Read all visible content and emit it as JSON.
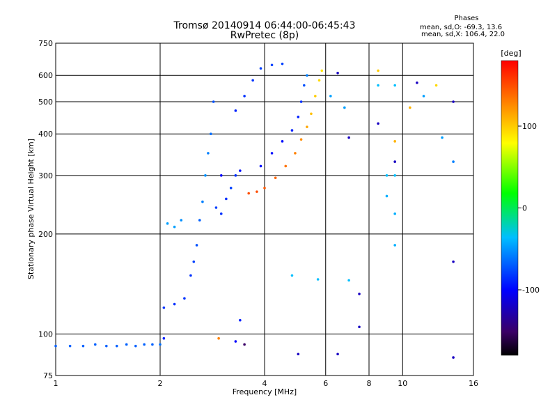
{
  "chart_data": {
    "type": "scatter",
    "title": "Tromsø 20140914 06:44:00-06:45:43",
    "subtitle": "RwPretec (8p)",
    "phases": {
      "heading": "Phases",
      "line_o": "mean, sd,O: -69.3, 13.6",
      "line_x": "mean, sd,X: 106.4, 22.0"
    },
    "xlabel": "Frequency [MHz]",
    "ylabel": "Stationary phase Virtual Height [km]",
    "xscale": "log",
    "yscale": "log",
    "xlim": [
      1,
      16
    ],
    "ylim": [
      75,
      750
    ],
    "xticks": [
      1,
      2,
      4,
      6,
      8,
      10,
      16
    ],
    "yticks": [
      75,
      100,
      200,
      300,
      400,
      500,
      600,
      750
    ],
    "grid": true,
    "colorbar": {
      "label": "[deg]",
      "range": [
        -180,
        180
      ],
      "ticks": [
        100,
        0,
        -100
      ]
    },
    "series": [
      {
        "points": [
          [
            1.0,
            92,
            -70
          ],
          [
            1.1,
            92,
            -70
          ],
          [
            1.2,
            92,
            -70
          ],
          [
            1.3,
            93,
            -70
          ],
          [
            1.4,
            92,
            -70
          ],
          [
            1.5,
            92,
            -70
          ],
          [
            1.6,
            93,
            -70
          ],
          [
            1.7,
            92,
            -70
          ],
          [
            1.8,
            93,
            -70
          ],
          [
            1.9,
            93,
            -70
          ],
          [
            2.0,
            93,
            -65
          ],
          [
            2.05,
            97,
            -90
          ],
          [
            2.05,
            120,
            -85
          ],
          [
            2.2,
            123,
            -85
          ],
          [
            2.35,
            128,
            -85
          ],
          [
            2.45,
            150,
            -85
          ],
          [
            2.5,
            165,
            -80
          ],
          [
            2.55,
            185,
            -75
          ],
          [
            2.6,
            220,
            -70
          ],
          [
            2.65,
            250,
            -60
          ],
          [
            2.7,
            300,
            -55
          ],
          [
            2.75,
            350,
            -60
          ],
          [
            2.8,
            400,
            -65
          ],
          [
            2.85,
            500,
            -75
          ],
          [
            2.1,
            215,
            -50
          ],
          [
            2.2,
            210,
            -50
          ],
          [
            2.3,
            220,
            -55
          ],
          [
            2.9,
            240,
            -80
          ],
          [
            3.0,
            230,
            -85
          ],
          [
            3.1,
            255,
            -85
          ],
          [
            3.2,
            275,
            -80
          ],
          [
            3.3,
            300,
            -85
          ],
          [
            3.4,
            310,
            -95
          ],
          [
            3.3,
            470,
            -90
          ],
          [
            3.5,
            520,
            -85
          ],
          [
            3.7,
            580,
            -85
          ],
          [
            3.9,
            630,
            -80
          ],
          [
            4.2,
            645,
            -80
          ],
          [
            4.5,
            650,
            -80
          ],
          [
            3.9,
            320,
            -95
          ],
          [
            4.2,
            350,
            -95
          ],
          [
            4.5,
            380,
            -95
          ],
          [
            4.8,
            410,
            -90
          ],
          [
            5.0,
            450,
            -90
          ],
          [
            5.1,
            500,
            -85
          ],
          [
            5.2,
            560,
            -75
          ],
          [
            5.3,
            600,
            -60
          ],
          [
            3.0,
            300,
            -100
          ],
          [
            3.3,
            95,
            -100
          ],
          [
            3.4,
            110,
            -90
          ]
        ]
      },
      {
        "points": [
          [
            3.6,
            265,
            150
          ],
          [
            3.8,
            268,
            150
          ],
          [
            4.0,
            275,
            145
          ],
          [
            4.3,
            295,
            140
          ],
          [
            4.6,
            320,
            135
          ],
          [
            4.9,
            350,
            130
          ],
          [
            5.1,
            385,
            125
          ],
          [
            5.3,
            420,
            115
          ],
          [
            5.45,
            460,
            105
          ],
          [
            5.6,
            520,
            100
          ],
          [
            5.75,
            580,
            95
          ],
          [
            5.85,
            620,
            90
          ],
          [
            2.95,
            97,
            130
          ],
          [
            8.5,
            620,
            100
          ],
          [
            10.5,
            480,
            110
          ],
          [
            12.5,
            560,
            95
          ],
          [
            9.5,
            380,
            110
          ]
        ]
      },
      {
        "points": [
          [
            6.5,
            610,
            -120
          ],
          [
            7.0,
            390,
            -120
          ],
          [
            8.5,
            430,
            -120
          ],
          [
            11.0,
            570,
            -120
          ],
          [
            14.0,
            500,
            -120
          ],
          [
            9.5,
            330,
            -120
          ],
          [
            14.0,
            165,
            -120
          ],
          [
            7.5,
            132,
            -120
          ],
          [
            7.5,
            105,
            -120
          ],
          [
            5.0,
            87,
            -120
          ],
          [
            6.5,
            87,
            -120
          ],
          [
            14.0,
            85,
            -120
          ],
          [
            3.5,
            93,
            -150
          ]
        ]
      },
      {
        "points": [
          [
            6.2,
            520,
            -50
          ],
          [
            6.8,
            480,
            -50
          ],
          [
            8.5,
            560,
            -40
          ],
          [
            9.5,
            560,
            -40
          ],
          [
            11.5,
            520,
            -50
          ],
          [
            13.0,
            390,
            -50
          ],
          [
            9.0,
            300,
            -40
          ],
          [
            9.5,
            300,
            -40
          ],
          [
            9.0,
            260,
            -45
          ],
          [
            9.5,
            230,
            -45
          ],
          [
            9.5,
            185,
            -45
          ],
          [
            7.0,
            145,
            -40
          ],
          [
            5.7,
            146,
            -40
          ],
          [
            4.8,
            150,
            -40
          ],
          [
            14.0,
            330,
            -60
          ]
        ]
      }
    ]
  }
}
